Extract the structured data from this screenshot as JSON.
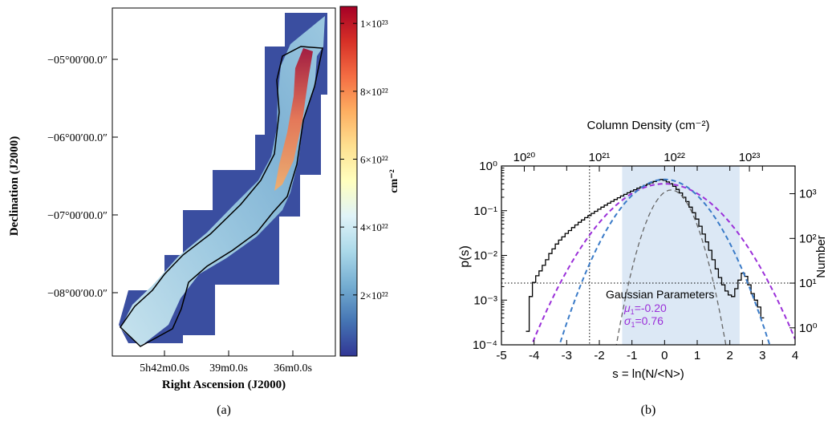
{
  "chart_data": [
    {
      "type": "heatmap",
      "panel_label": "(a)",
      "xlabel": "Right Ascension (J2000)",
      "ylabel": "Declination (J2000)",
      "x_ticks": [
        "5h42m0.0s",
        "39m0.0s",
        "36m0.0s"
      ],
      "y_ticks": [
        "−05°00′00.0″",
        "−06°00′00.0″",
        "−07°00′00.0″",
        "−08°00′00.0″"
      ],
      "colorbar": {
        "label": "cm⁻²",
        "tick_values": [
          2e+22,
          4e+22,
          6e+22,
          8e+22,
          1e+23
        ],
        "tick_labels": [
          "2×10²²",
          "4×10²²",
          "6×10²²",
          "8×10²²",
          "1×10²³"
        ],
        "range": [
          2e+21,
          1.05e+23
        ],
        "colormap": [
          "#313695",
          "#4575b4",
          "#74add1",
          "#abd9e9",
          "#e0f3f8",
          "#ffffbf",
          "#fee090",
          "#fdae61",
          "#f46d43",
          "#d73027",
          "#a50026"
        ]
      }
    },
    {
      "type": "line",
      "panel_label": "(b)",
      "xlabel": "s = ln(N/<N>)",
      "ylabel": "p(s)",
      "top_xlabel": "Column Density (cm⁻²)",
      "right_ylabel": "Number",
      "xlim": [
        -5,
        4
      ],
      "ylim": [
        0.0001,
        1
      ],
      "yscale": "log",
      "x_ticks": [
        "-5",
        "-4",
        "-3",
        "-2",
        "-1",
        "0",
        "1",
        "2",
        "3",
        "4"
      ],
      "y_ticks": [
        "10⁻⁴",
        "10⁻³",
        "10⁻²",
        "10⁻¹",
        "10⁰"
      ],
      "top_ticks": [
        "10²⁰",
        "10²¹",
        "10²²",
        "10²³"
      ],
      "top_tick_s": [
        -4.3,
        -2.0,
        0.3,
        2.6
      ],
      "right_ticks": [
        "10⁰",
        "10¹",
        "10²",
        "10³"
      ],
      "right_tick_p": [
        0.00024,
        0.0024,
        0.024,
        0.24
      ],
      "shaded_region": [
        -1.3,
        2.3
      ],
      "vline_s": -2.3,
      "hline_p": 0.0024,
      "annotation": {
        "title": "Gaussian Parameters",
        "mu_label": "μ",
        "mu_sub": "1",
        "mu_value": "=-0.20",
        "sigma_label": "σ",
        "sigma_sub": "1",
        "sigma_value": "=0.76"
      },
      "colors": {
        "histogram": "#000000",
        "fit_total": "#9b30d9",
        "fit_main": "#3a7bc8",
        "fit_component": "#666666",
        "shade": "#dce8f5",
        "annotation": "#9b30d9"
      },
      "histogram": {
        "s": [
          -4.2,
          -4.1,
          -4.0,
          -3.9,
          -3.8,
          -3.7,
          -3.6,
          -3.5,
          -3.4,
          -3.3,
          -3.2,
          -3.1,
          -3.0,
          -2.9,
          -2.8,
          -2.7,
          -2.6,
          -2.5,
          -2.4,
          -2.3,
          -2.2,
          -2.1,
          -2.0,
          -1.9,
          -1.8,
          -1.7,
          -1.6,
          -1.5,
          -1.4,
          -1.3,
          -1.2,
          -1.1,
          -1.0,
          -0.9,
          -0.8,
          -0.7,
          -0.6,
          -0.5,
          -0.4,
          -0.3,
          -0.2,
          -0.1,
          0.0,
          0.1,
          0.2,
          0.3,
          0.4,
          0.5,
          0.6,
          0.7,
          0.8,
          0.9,
          1.0,
          1.1,
          1.2,
          1.3,
          1.4,
          1.5,
          1.6,
          1.7,
          1.8,
          1.9,
          2.0,
          2.1,
          2.2,
          2.3,
          2.4,
          2.5,
          2.6,
          2.7,
          2.8,
          2.9,
          3.0
        ],
        "p": [
          0.0002,
          0.0012,
          0.0025,
          0.0035,
          0.0045,
          0.006,
          0.008,
          0.011,
          0.014,
          0.018,
          0.022,
          0.026,
          0.031,
          0.036,
          0.042,
          0.048,
          0.055,
          0.062,
          0.07,
          0.078,
          0.087,
          0.097,
          0.108,
          0.12,
          0.133,
          0.147,
          0.162,
          0.178,
          0.195,
          0.213,
          0.232,
          0.252,
          0.273,
          0.295,
          0.318,
          0.342,
          0.367,
          0.393,
          0.42,
          0.45,
          0.48,
          0.5,
          0.48,
          0.44,
          0.4,
          0.35,
          0.3,
          0.25,
          0.2,
          0.16,
          0.12,
          0.09,
          0.065,
          0.045,
          0.03,
          0.02,
          0.013,
          0.008,
          0.005,
          0.0032,
          0.0022,
          0.0016,
          0.0013,
          0.0012,
          0.0018,
          0.0028,
          0.004,
          0.0034,
          0.0022,
          0.0014,
          0.001,
          0.0007,
          0.0004
        ]
      },
      "series": [
        {
          "name": "",
          "mu": 0.0,
          "sigma": 1.0,
          "amp": 0.4,
          "style": "dashed",
          "color_key": "fit_total"
        },
        {
          "name": "",
          "mu": 0.0,
          "sigma": 0.78,
          "amp": 0.5,
          "style": "dashed",
          "color_key": "fit_main"
        },
        {
          "name": "",
          "mu": 0.2,
          "sigma": 0.42,
          "amp": 0.29,
          "style": "dashed",
          "color_key": "fit_component"
        }
      ]
    }
  ]
}
